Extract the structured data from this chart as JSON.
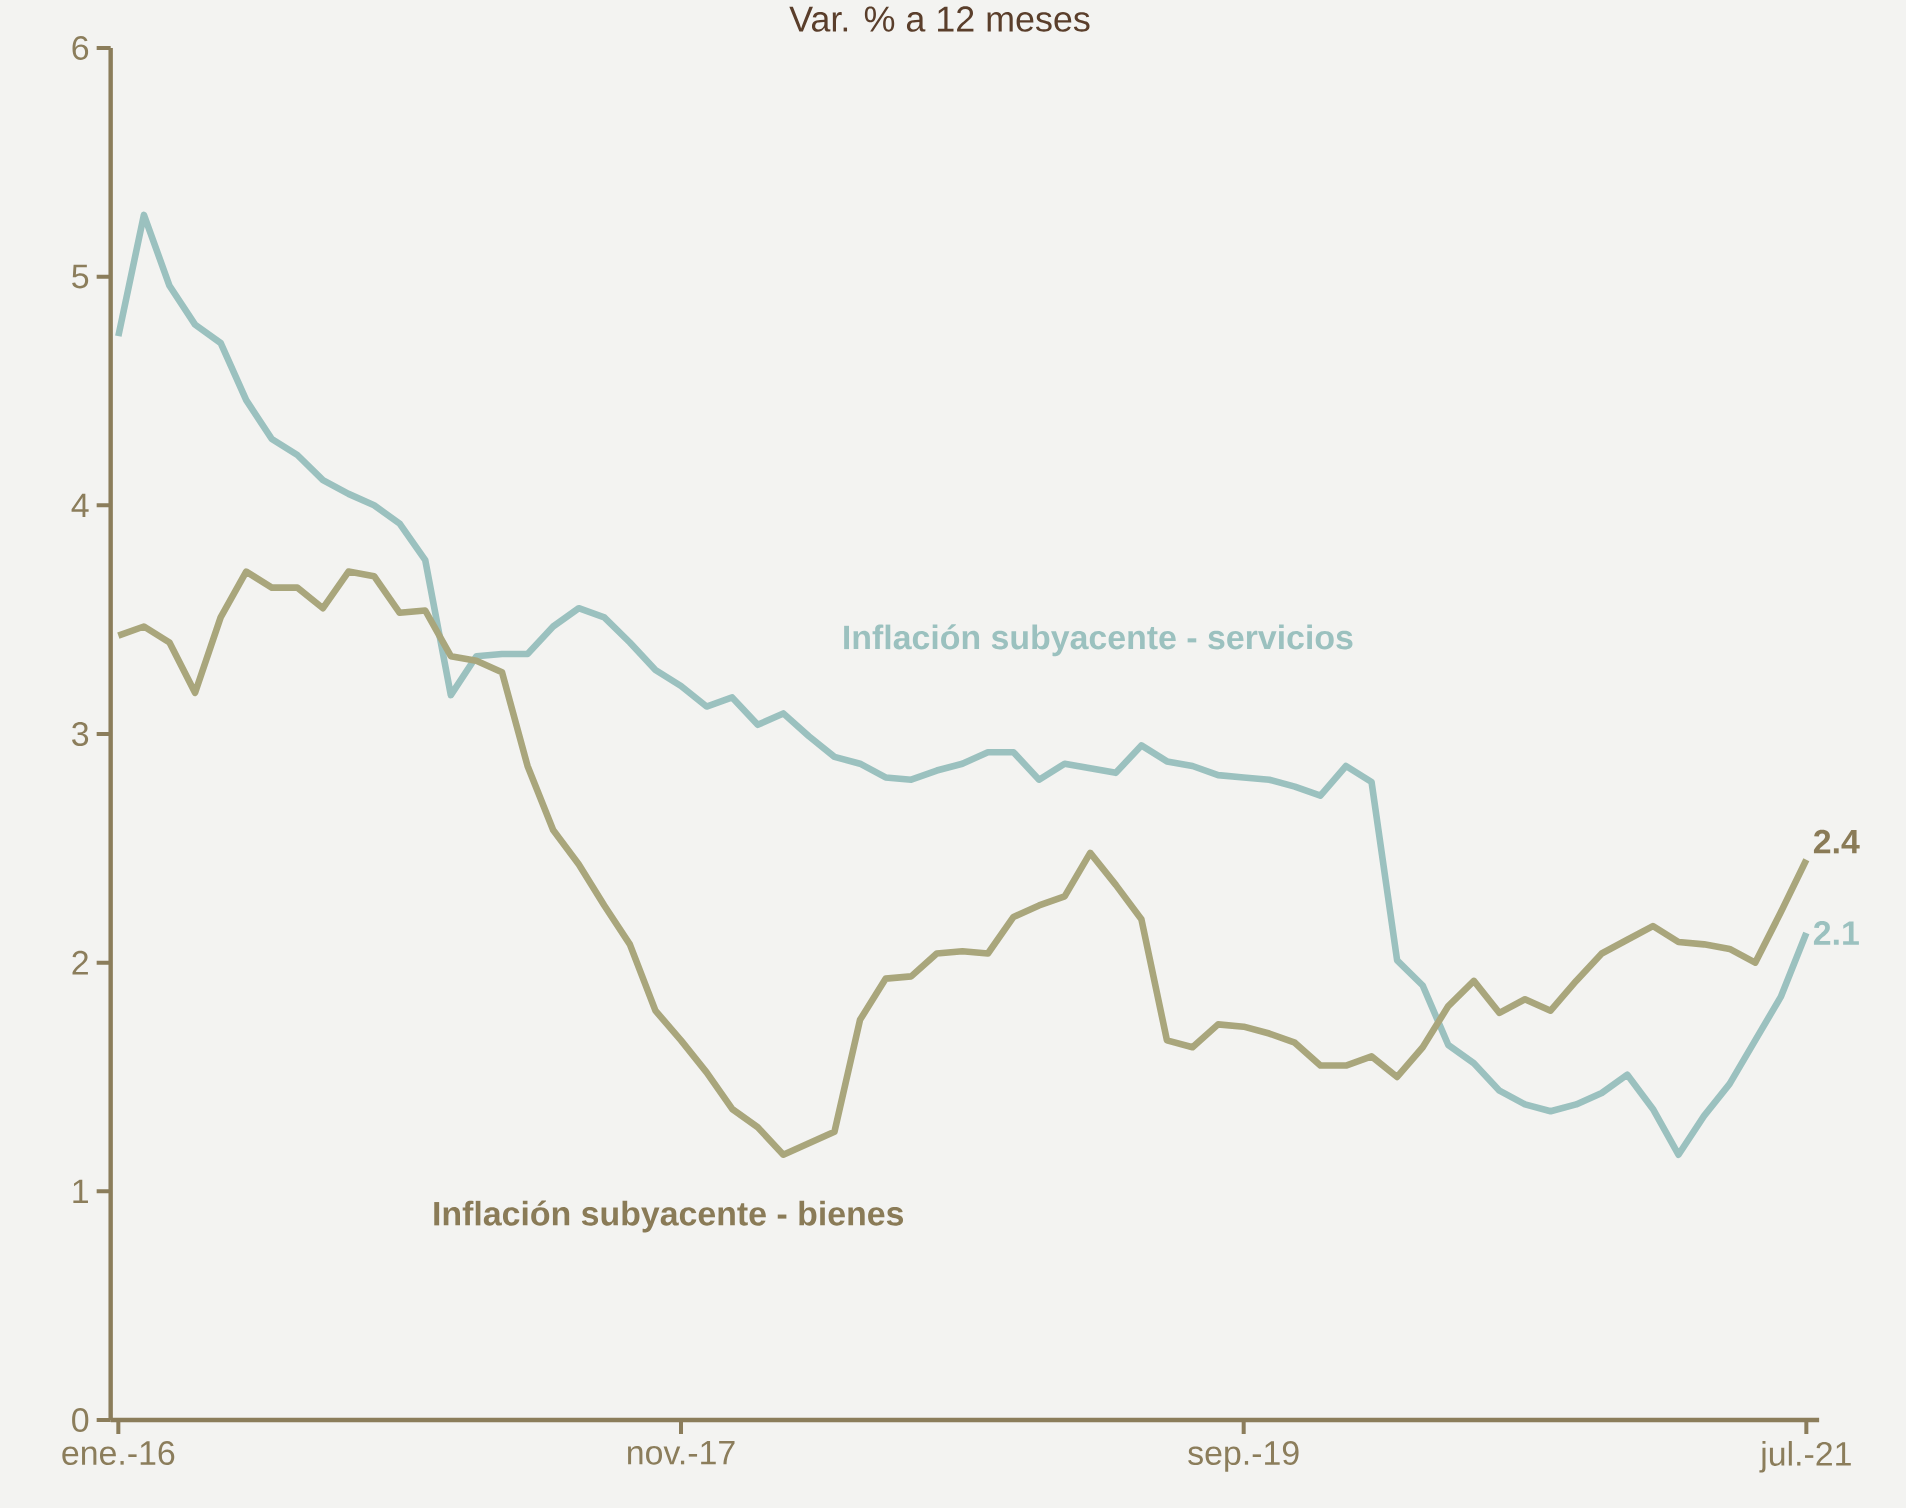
{
  "chart_data": {
    "type": "line",
    "title": "Var. % a 12 meses",
    "categories": [
      "ene.-16",
      null,
      null,
      null,
      null,
      null,
      null,
      null,
      null,
      null,
      null,
      null,
      null,
      null,
      null,
      null,
      null,
      null,
      null,
      null,
      null,
      null,
      "nov.-17",
      null,
      null,
      null,
      null,
      null,
      null,
      null,
      null,
      null,
      null,
      null,
      null,
      null,
      null,
      null,
      null,
      null,
      null,
      null,
      null,
      null,
      "sep.-19",
      null,
      null,
      null,
      null,
      null,
      null,
      null,
      null,
      null,
      null,
      null,
      null,
      null,
      null,
      null,
      null,
      null,
      null,
      null,
      null,
      null,
      "jul.-21"
    ],
    "ylim": [
      0,
      6
    ],
    "yticks": [
      0,
      1,
      2,
      3,
      4,
      5,
      6
    ],
    "grid": false,
    "legend": false,
    "series": [
      {
        "name": "Inflación subyacente - servicios",
        "color": "#9bc1bf",
        "values": [
          4.74,
          5.27,
          4.96,
          4.79,
          4.71,
          4.46,
          4.29,
          4.22,
          4.11,
          4.05,
          4.0,
          3.92,
          3.76,
          3.17,
          3.34,
          3.35,
          3.35,
          3.47,
          3.55,
          3.51,
          3.4,
          3.28,
          3.21,
          3.12,
          3.16,
          3.04,
          3.09,
          2.99,
          2.9,
          2.87,
          2.81,
          2.8,
          2.84,
          2.87,
          2.92,
          2.92,
          2.8,
          2.87,
          2.85,
          2.83,
          2.95,
          2.88,
          2.86,
          2.82,
          2.81,
          2.8,
          2.77,
          2.73,
          2.86,
          2.79,
          2.01,
          1.9,
          1.64,
          1.56,
          1.44,
          1.38,
          1.35,
          1.38,
          1.43,
          1.51,
          1.36,
          1.16,
          1.33,
          1.47,
          1.66,
          1.85,
          2.13
        ],
        "value_labels": [
          null,
          null,
          null,
          null,
          null,
          null,
          null,
          null,
          null,
          null,
          null,
          null,
          null,
          null,
          null,
          null,
          null,
          null,
          null,
          null,
          null,
          null,
          null,
          null,
          null,
          null,
          null,
          null,
          null,
          null,
          null,
          null,
          null,
          null,
          null,
          null,
          null,
          null,
          null,
          null,
          null,
          null,
          null,
          null,
          null,
          null,
          null,
          null,
          null,
          null,
          null,
          null,
          null,
          null,
          null,
          null,
          null,
          null,
          null,
          null,
          null,
          null,
          null,
          null,
          null,
          null,
          "2.1"
        ]
      },
      {
        "name": "Inflación subyacente -  bienes",
        "color": "#a9a67c",
        "values": [
          3.43,
          3.47,
          3.4,
          3.18,
          3.51,
          3.71,
          3.64,
          3.64,
          3.55,
          3.71,
          3.69,
          3.53,
          3.54,
          3.34,
          3.32,
          3.27,
          2.86,
          2.58,
          2.43,
          2.25,
          2.08,
          1.79,
          1.66,
          1.52,
          1.36,
          1.28,
          1.16,
          1.21,
          1.26,
          1.75,
          1.93,
          1.94,
          2.04,
          2.05,
          2.04,
          2.2,
          2.25,
          2.29,
          2.48,
          2.34,
          2.19,
          1.66,
          1.63,
          1.73,
          1.72,
          1.69,
          1.65,
          1.55,
          1.55,
          1.59,
          1.5,
          1.63,
          1.81,
          1.92,
          1.78,
          1.84,
          1.79,
          1.92,
          2.04,
          2.1,
          2.16,
          2.09,
          2.08,
          2.06,
          2.0,
          2.22,
          2.45
        ],
        "value_labels": [
          null,
          null,
          null,
          null,
          null,
          null,
          null,
          null,
          null,
          null,
          null,
          null,
          null,
          null,
          null,
          null,
          null,
          null,
          null,
          null,
          null,
          null,
          null,
          null,
          null,
          null,
          null,
          null,
          null,
          null,
          null,
          null,
          null,
          null,
          null,
          null,
          null,
          null,
          null,
          null,
          null,
          null,
          null,
          null,
          null,
          null,
          null,
          null,
          null,
          null,
          null,
          null,
          null,
          null,
          null,
          null,
          null,
          null,
          null,
          null,
          null,
          null,
          null,
          null,
          null,
          null,
          "2.4"
        ]
      }
    ]
  }
}
